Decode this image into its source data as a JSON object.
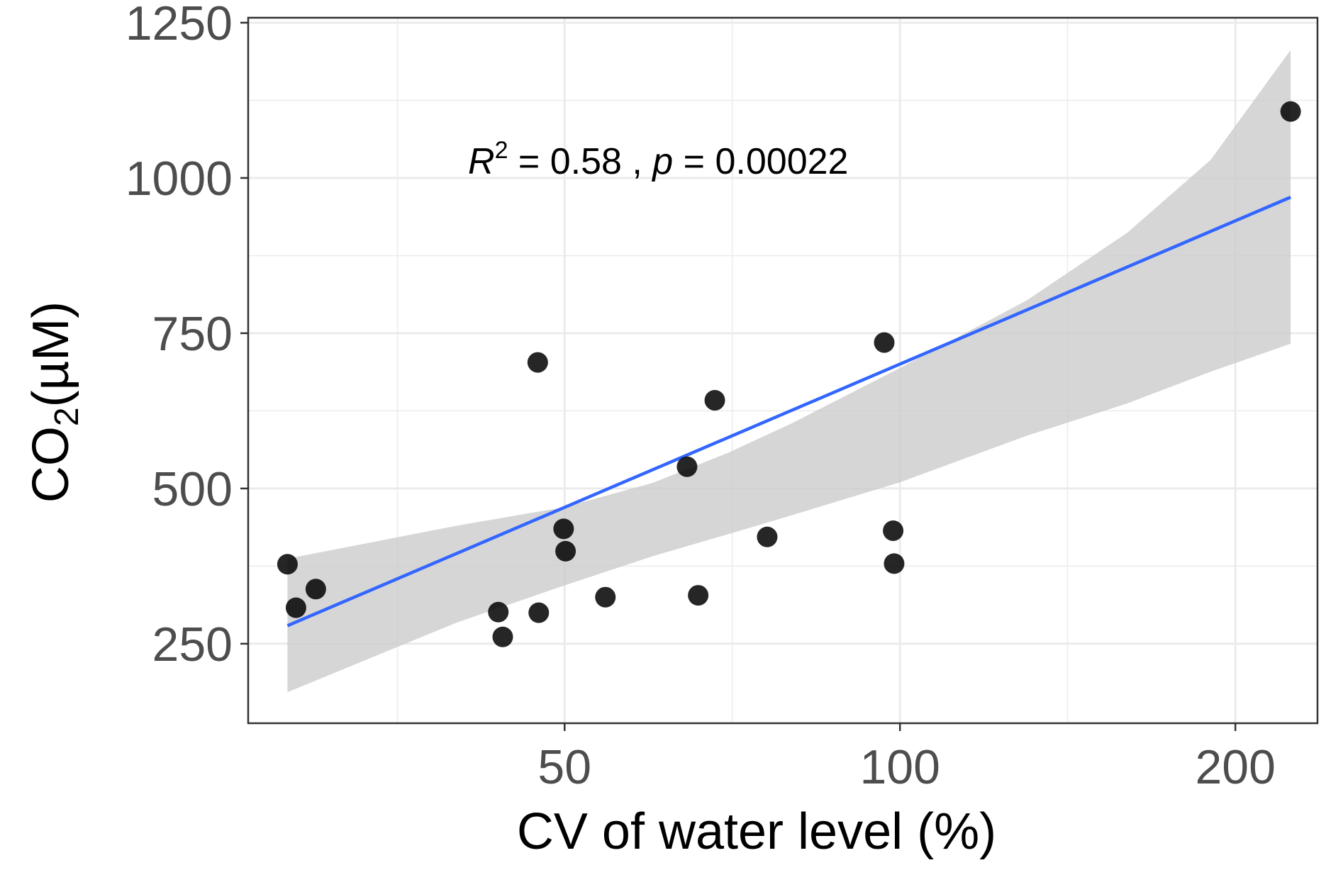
{
  "chart_data": {
    "type": "scatter",
    "title": "",
    "xlabel": "CV of water level (%)",
    "ylabel_main": "CO",
    "ylabel_sub": "2",
    "ylabel_unit": "(µM)",
    "x_scale": "log10",
    "xlim": [
      26,
      237
    ],
    "ylim": [
      122,
      1258
    ],
    "x_ticks": [
      50,
      100,
      200
    ],
    "x_tick_labels": [
      "50",
      "100",
      "200"
    ],
    "y_ticks": [
      250,
      500,
      750,
      1000,
      1250
    ],
    "y_tick_labels": [
      "250",
      "500",
      "750",
      "1000",
      "1250"
    ],
    "x_minor_gridlines": [
      35.4,
      70.7,
      141.4
    ],
    "y_minor_gridlines": [
      375,
      625,
      875,
      1125
    ],
    "grid": true,
    "legend": "none",
    "annotation": {
      "r_symbol": "R",
      "r_exp": "2",
      "r_value": " = 0.58 , ",
      "p_symbol": "p",
      "p_value": " = 0.00022"
    },
    "points": [
      {
        "x": 28.2,
        "y": 378
      },
      {
        "x": 28.7,
        "y": 308
      },
      {
        "x": 29.9,
        "y": 338
      },
      {
        "x": 43.6,
        "y": 301
      },
      {
        "x": 44.0,
        "y": 261
      },
      {
        "x": 47.3,
        "y": 703
      },
      {
        "x": 47.4,
        "y": 300
      },
      {
        "x": 49.9,
        "y": 435
      },
      {
        "x": 50.1,
        "y": 399
      },
      {
        "x": 54.4,
        "y": 325
      },
      {
        "x": 64.4,
        "y": 535
      },
      {
        "x": 65.9,
        "y": 328
      },
      {
        "x": 68.2,
        "y": 642
      },
      {
        "x": 76.0,
        "y": 422
      },
      {
        "x": 96.8,
        "y": 735
      },
      {
        "x": 98.6,
        "y": 432
      },
      {
        "x": 98.8,
        "y": 379
      },
      {
        "x": 224.2,
        "y": 1107
      }
    ],
    "fit_line": {
      "x": [
        28.2,
        224.2
      ],
      "y": [
        279,
        969
      ]
    },
    "confidence_band": {
      "x": [
        28.2,
        40,
        50,
        60,
        70,
        80,
        100,
        130,
        160,
        190,
        224.2
      ],
      "lower": [
        172,
        284,
        344,
        391,
        426,
        457,
        510,
        585,
        637,
        688,
        733
      ],
      "upper": [
        387,
        440,
        470,
        509,
        557,
        605,
        694,
        803,
        912,
        1029,
        1206
      ]
    },
    "colors": {
      "point": "#000000",
      "fit_line": "#3366ff",
      "band": "#cccccc",
      "grid": "#ebebeb",
      "panel_border": "#333333",
      "tick_label": "#4d4d4d",
      "background": "#ffffff"
    }
  }
}
